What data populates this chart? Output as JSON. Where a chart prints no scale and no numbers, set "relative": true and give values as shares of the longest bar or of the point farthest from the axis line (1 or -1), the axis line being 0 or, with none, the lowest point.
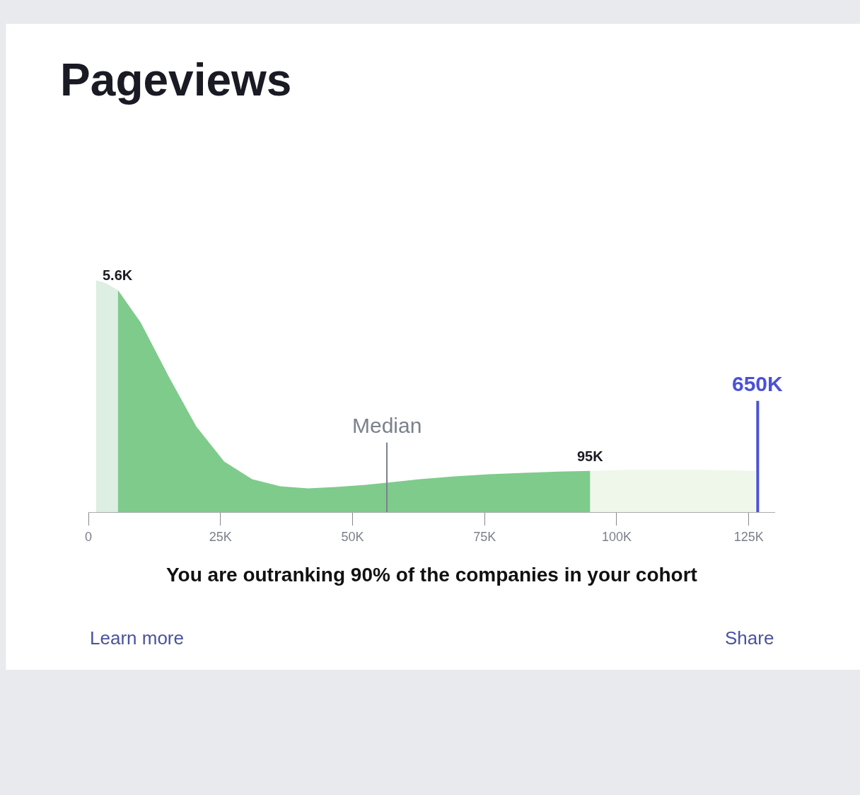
{
  "chart_data": {
    "type": "area",
    "title": "Pageviews",
    "relative": true,
    "series": [
      {
        "color": "#dcefe2",
        "x": [
          1450,
          3300,
          5600
        ],
        "values": [
          1.0,
          0.988,
          0.957
        ]
      },
      {
        "color": "#7fcb8c",
        "x": [
          5600,
          9900,
          15200,
          20400,
          25700,
          31000,
          36300,
          41600,
          46800,
          52100,
          57400,
          62700,
          69300,
          75900,
          82500,
          89000,
          95000
        ],
        "values": [
          0.957,
          0.818,
          0.585,
          0.37,
          0.218,
          0.142,
          0.111,
          0.102,
          0.108,
          0.117,
          0.129,
          0.142,
          0.154,
          0.163,
          0.169,
          0.175,
          0.178
        ]
      },
      {
        "color": "#eef7ea",
        "x": [
          95000,
          102200,
          115400,
          126300
        ],
        "values": [
          0.178,
          0.182,
          0.182,
          0.178
        ]
      }
    ],
    "xlim": [
      0,
      130000
    ],
    "xticks": [
      {
        "value": 0,
        "label": "0"
      },
      {
        "value": 25000,
        "label": "25K"
      },
      {
        "value": 50000,
        "label": "50K"
      },
      {
        "value": 75000,
        "label": "75K"
      },
      {
        "value": 100000,
        "label": "100K"
      },
      {
        "value": 125000,
        "label": "125K"
      }
    ],
    "ref_lines": [
      {
        "axis": "x",
        "value": 56500,
        "label": "Median",
        "color": "#7a828c"
      },
      {
        "axis": "x",
        "value": 126700,
        "label": "650K",
        "color": "#4b50d8"
      }
    ],
    "annotations": [
      "5.6K",
      "95K",
      "You are outranking 90% of the companies in your cohort",
      "Learn more",
      "Share"
    ]
  }
}
